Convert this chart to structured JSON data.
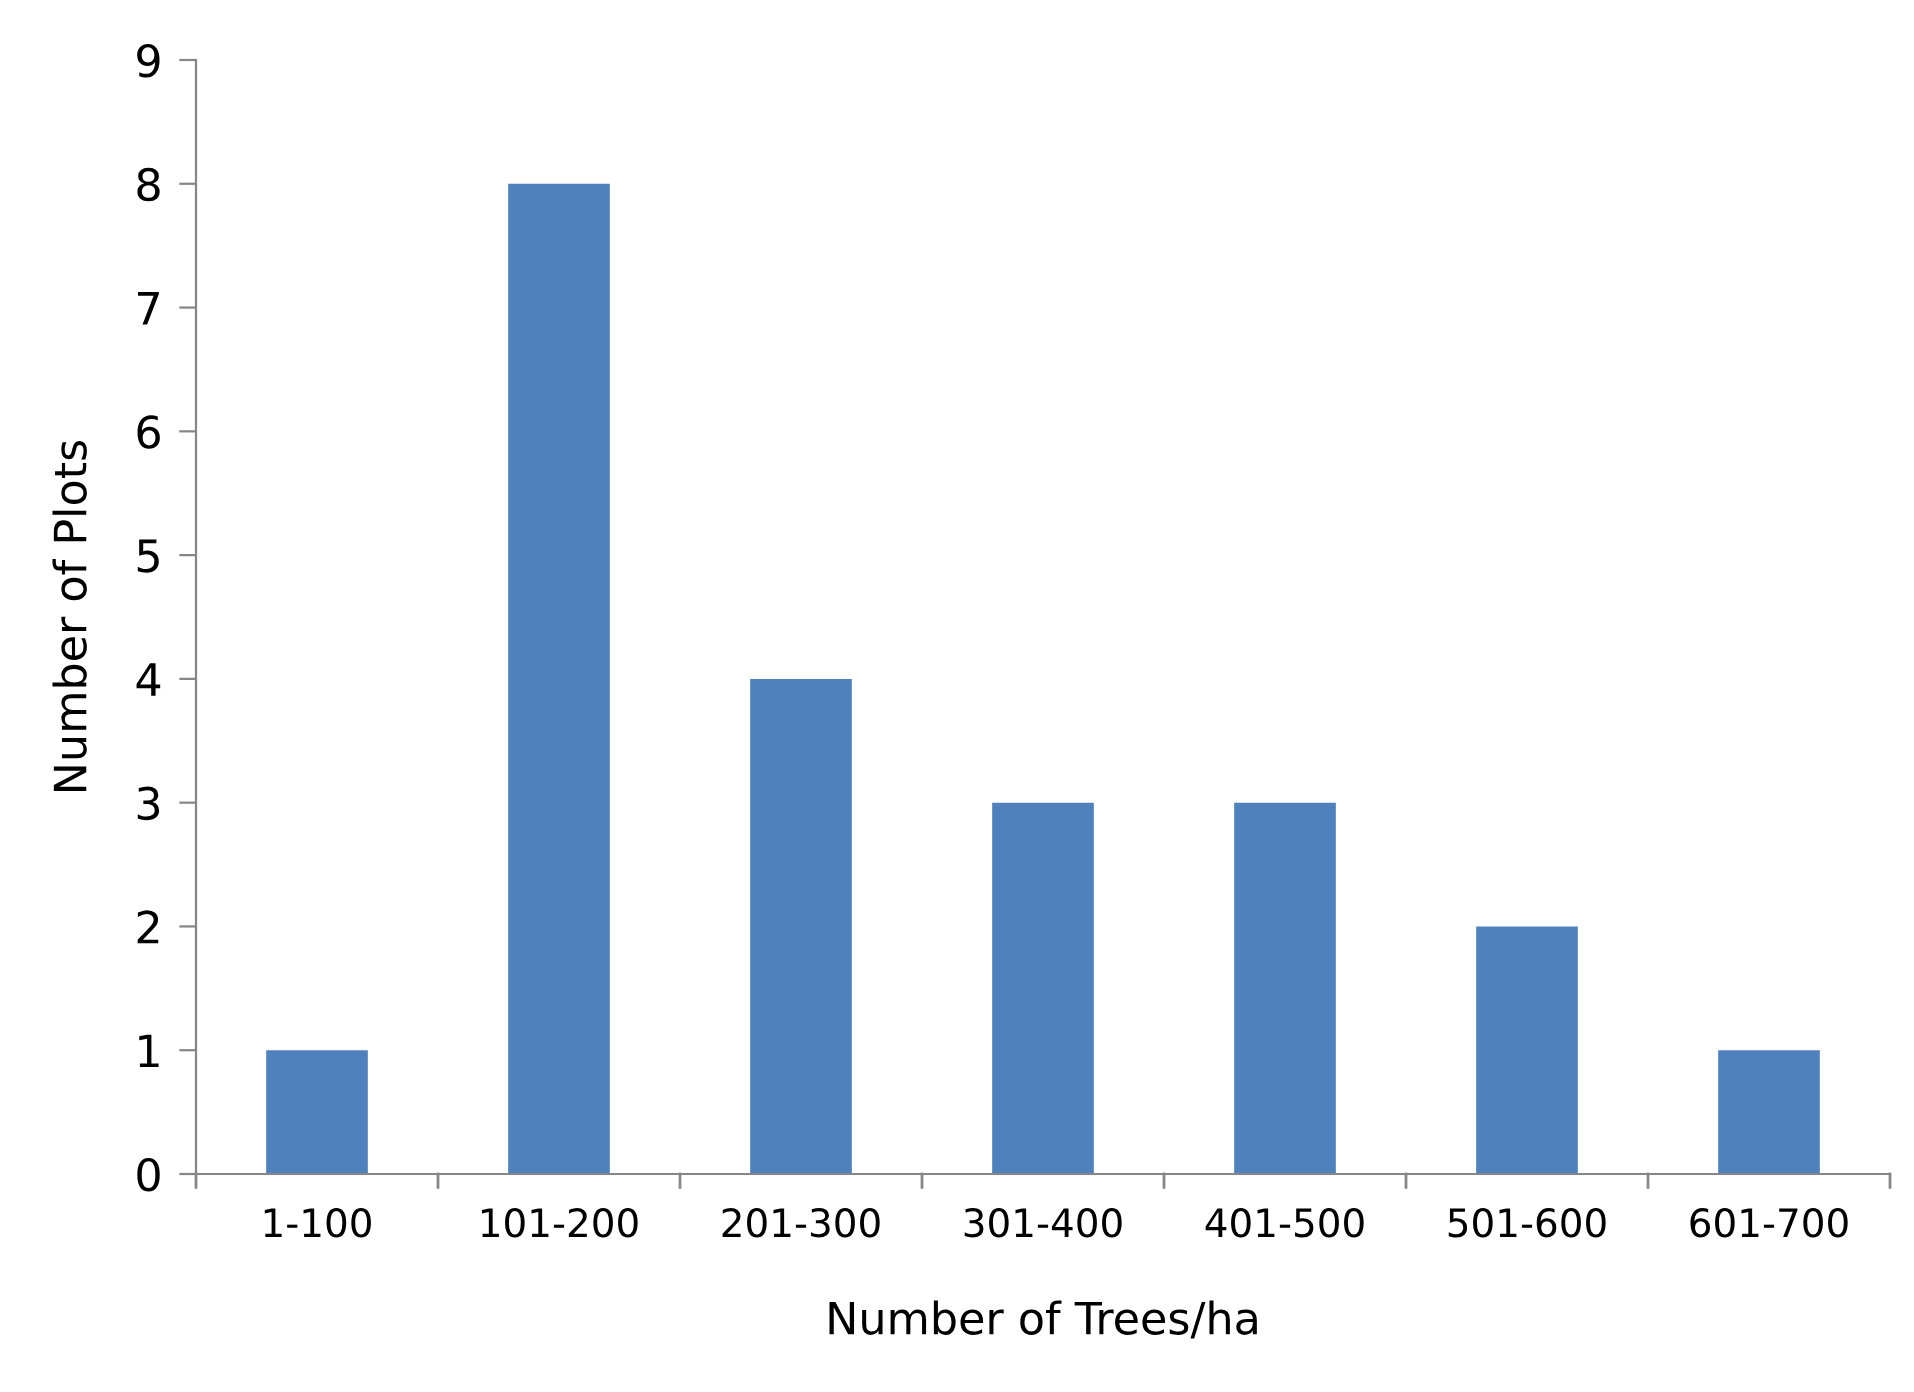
{
  "chart_data": {
    "type": "bar",
    "xlabel": "Number of Trees/ha",
    "ylabel": "Number of Plots",
    "categories": [
      "1-100",
      "101-200",
      "201-300",
      "301-400",
      "401-500",
      "501-600",
      "601-700"
    ],
    "values": [
      1,
      8,
      4,
      3,
      3,
      2,
      1
    ],
    "color": "#4f81bd",
    "ylim": [
      0,
      9
    ],
    "yticks": [
      0,
      1,
      2,
      3,
      4,
      5,
      6,
      7,
      8,
      9
    ],
    "grid": false,
    "legend": false
  }
}
